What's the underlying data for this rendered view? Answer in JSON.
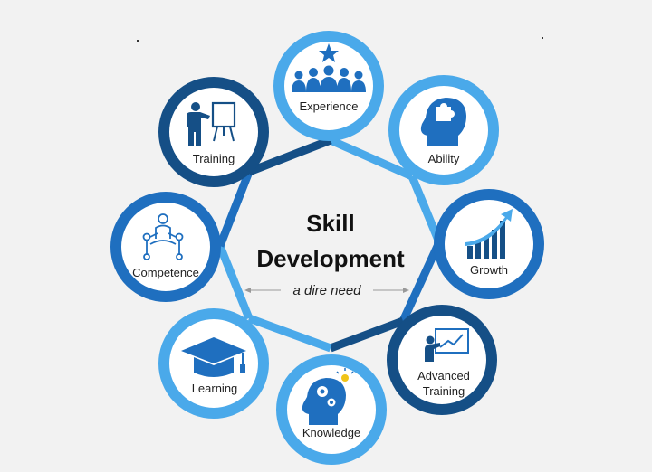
{
  "center": {
    "title_line1": "Skill",
    "title_line2": "Development",
    "subtitle": "a dire need"
  },
  "nodes": [
    {
      "id": "experience",
      "label": "Experience",
      "icon": "team-star-icon",
      "color": "#4aa9ea"
    },
    {
      "id": "ability",
      "label": "Ability",
      "icon": "puzzle-head-icon",
      "color": "#4aa9ea"
    },
    {
      "id": "growth",
      "label": "Growth",
      "icon": "growth-chart-icon",
      "color": "#1f6fbf"
    },
    {
      "id": "advanced-training",
      "label_line1": "Advanced",
      "label_line2": "Training",
      "icon": "presenter-board-icon",
      "color": "#154f86"
    },
    {
      "id": "knowledge",
      "label": "Knowledge",
      "icon": "gear-head-icon",
      "color": "#4aa9ea"
    },
    {
      "id": "learning",
      "label": "Learning",
      "icon": "graduation-cap-icon",
      "color": "#4aa9ea"
    },
    {
      "id": "competence",
      "label": "Competence",
      "icon": "meditation-network-icon",
      "color": "#1f6fbf"
    },
    {
      "id": "training",
      "label": "Training",
      "icon": "trainer-flipchart-icon",
      "color": "#154f86"
    }
  ],
  "colors": {
    "light": "#4aa9ea",
    "mid": "#1f6fbf",
    "dark": "#154f86",
    "icon": "#1f6fbf"
  }
}
